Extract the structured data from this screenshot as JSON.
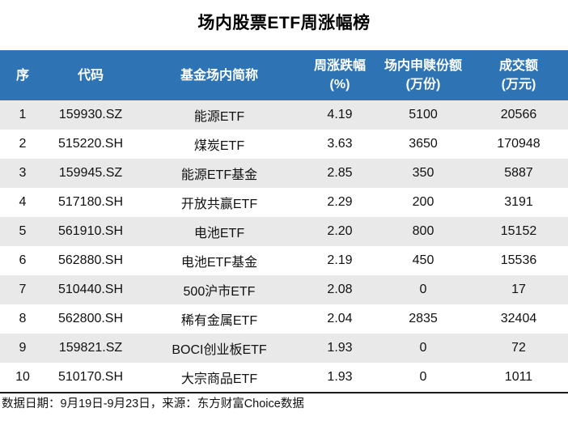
{
  "chart_data": {
    "type": "table",
    "title": "场内股票ETF周涨幅榜",
    "columns": [
      {
        "line1": "序",
        "line2": ""
      },
      {
        "line1": "代码",
        "line2": ""
      },
      {
        "line1": "基金场内简称",
        "line2": ""
      },
      {
        "line1": "周涨跌幅",
        "line2": "(%)"
      },
      {
        "line1": "场内申赎份额",
        "line2": "(万份)"
      },
      {
        "line1": "成交额",
        "line2": "(万元)"
      }
    ],
    "column_semantics": [
      "rank",
      "ticker_code",
      "fund_short_name",
      "weekly_change_pct",
      "subscription_redemption_shares_10k",
      "turnover_10k_yuan"
    ],
    "rows": [
      [
        "1",
        "159930.SZ",
        "能源ETF",
        "4.19",
        "5100",
        "20566"
      ],
      [
        "2",
        "515220.SH",
        "煤炭ETF",
        "3.63",
        "3650",
        "170948"
      ],
      [
        "3",
        "159945.SZ",
        "能源ETF基金",
        "2.85",
        "350",
        "5887"
      ],
      [
        "4",
        "517180.SH",
        "开放共赢ETF",
        "2.29",
        "200",
        "3191"
      ],
      [
        "5",
        "561910.SH",
        "电池ETF",
        "2.20",
        "800",
        "15152"
      ],
      [
        "6",
        "562880.SH",
        "电池ETF基金",
        "2.19",
        "450",
        "15536"
      ],
      [
        "7",
        "510440.SH",
        "500沪市ETF",
        "2.08",
        "0",
        "17"
      ],
      [
        "8",
        "562800.SH",
        "稀有金属ETF",
        "2.04",
        "2835",
        "32404"
      ],
      [
        "9",
        "159821.SZ",
        "BOCI创业板ETF",
        "1.93",
        "0",
        "72"
      ],
      [
        "10",
        "510170.SH",
        "大宗商品ETF",
        "1.93",
        "0",
        "1011"
      ]
    ],
    "source_note": "数据日期：9月19日-9月23日，来源：东方财富Choice数据"
  },
  "colors": {
    "header_bg": "#2E74B5",
    "header_text": "#FFFFFF",
    "row_stripe": "#E9E9E9",
    "row_plain": "#FFFFFF",
    "body_text": "#111111",
    "footer_rule": "#1A1A1A"
  }
}
